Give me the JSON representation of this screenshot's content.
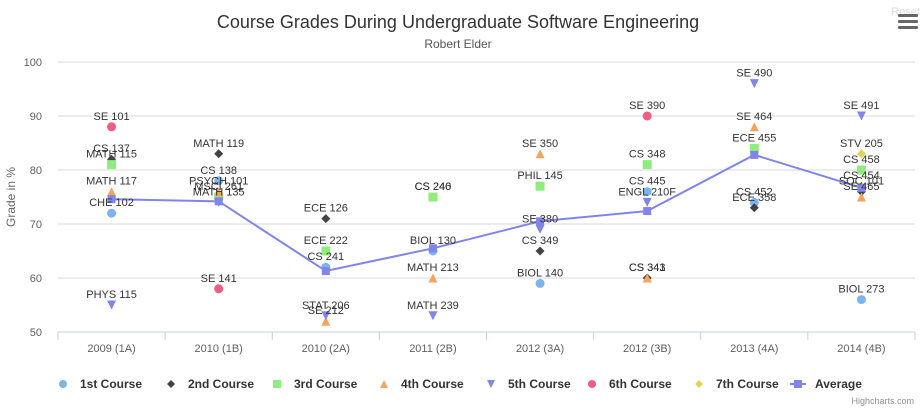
{
  "header": {
    "reset_label": "Reset"
  },
  "credits": "Highcharts.com",
  "icons": {
    "menu": "hamburger-menu-icon"
  },
  "colors": {
    "1st Course": "#7cb5ec",
    "2nd Course": "#434348",
    "3rd Course": "#90ed7d",
    "4th Course": "#f7a35c",
    "5th Course": "#8085e9",
    "6th Course": "#f15c80",
    "7th Course": "#e4d354",
    "Average": "#8085e9"
  },
  "chart_data": {
    "type": "scatter",
    "title": "Course Grades During Undergraduate Software Engineering",
    "subtitle": "Robert Elder",
    "ylabel": "Grade in %",
    "xlabel": "",
    "ylim": [
      50,
      100
    ],
    "yticks": [
      50,
      60,
      70,
      80,
      90,
      100
    ],
    "categories": [
      "2009 (1A)",
      "2010 (1B)",
      "2010 (2A)",
      "2011 (2B)",
      "2012 (3A)",
      "2012 (3B)",
      "2013 (4A)",
      "2014 (4B)"
    ],
    "grid": true,
    "legend_position": "bottom",
    "series": [
      {
        "name": "1st Course",
        "marker": "circle",
        "points": [
          {
            "x": 0,
            "y": 72,
            "label": "CHE 102"
          },
          {
            "x": 1,
            "y": 78,
            "label": "CS 138"
          },
          {
            "x": 2,
            "y": 62,
            "label": "CS 241"
          },
          {
            "x": 3,
            "y": 65,
            "label": "BIOL 130"
          },
          {
            "x": 4,
            "y": 59,
            "label": "BIOL 140"
          },
          {
            "x": 5,
            "y": 76,
            "label": "CS 445"
          },
          {
            "x": 6,
            "y": 74,
            "label": "CS 452"
          },
          {
            "x": 7,
            "y": 56,
            "label": "BIOL 273"
          }
        ]
      },
      {
        "name": "2nd Course",
        "marker": "diamond",
        "points": [
          {
            "x": 0,
            "y": 82,
            "label": "CS 137"
          },
          {
            "x": 1,
            "y": 83,
            "label": "MATH 119"
          },
          {
            "x": 2,
            "y": 71,
            "label": "ECE 126"
          },
          {
            "x": 3,
            "y": 75,
            "label": "CS 246"
          },
          {
            "x": 4,
            "y": 65,
            "label": "CS 349"
          },
          {
            "x": 5,
            "y": 60,
            "label": "CS 341"
          },
          {
            "x": 6,
            "y": 73,
            "label": "ECE 358"
          },
          {
            "x": 7,
            "y": 76,
            "label": "SOC 101"
          }
        ]
      },
      {
        "name": "3rd Course",
        "marker": "square",
        "points": [
          {
            "x": 0,
            "y": 81,
            "label": "MATH 115"
          },
          {
            "x": 1,
            "y": 75,
            "label": "MSCI 261"
          },
          {
            "x": 2,
            "y": 65,
            "label": "ECE 222"
          },
          {
            "x": 3,
            "y": 75,
            "label": "CS 240"
          },
          {
            "x": 4,
            "y": 77,
            "label": "PHIL 145"
          },
          {
            "x": 5,
            "y": 81,
            "label": "CS 348"
          },
          {
            "x": 6,
            "y": 84,
            "label": "ECE 455"
          },
          {
            "x": 7,
            "y": 80,
            "label": "CS 458"
          }
        ]
      },
      {
        "name": "4th Course",
        "marker": "triangle",
        "points": [
          {
            "x": 0,
            "y": 76,
            "label": "MATH 117"
          },
          {
            "x": 1,
            "y": 76,
            "label": "PSYCH 101"
          },
          {
            "x": 2,
            "y": 52,
            "label": "SE 212"
          },
          {
            "x": 3,
            "y": 60,
            "label": "MATH 213"
          },
          {
            "x": 4,
            "y": 83,
            "label": "SE 350"
          },
          {
            "x": 5,
            "y": 60,
            "label": "CS 343"
          },
          {
            "x": 6,
            "y": 88,
            "label": "SE 464"
          },
          {
            "x": 7,
            "y": 75,
            "label": "SE 465"
          }
        ]
      },
      {
        "name": "5th Course",
        "marker": "triangle-down",
        "points": [
          {
            "x": 0,
            "y": 55,
            "label": "PHYS 115"
          },
          {
            "x": 1,
            "y": 74,
            "label": "MATH 135"
          },
          {
            "x": 2,
            "y": 53,
            "label": "STAT 206"
          },
          {
            "x": 3,
            "y": 53,
            "label": "MATH 239"
          },
          {
            "x": 4,
            "y": 69,
            "label": "SE 380"
          },
          {
            "x": 5,
            "y": 74,
            "label": "ENGL 210F"
          },
          {
            "x": 6,
            "y": 96,
            "label": "SE 490"
          },
          {
            "x": 7,
            "y": 90,
            "label": "SE 491"
          }
        ]
      },
      {
        "name": "6th Course",
        "marker": "circle",
        "points": [
          {
            "x": 0,
            "y": 88,
            "label": "SE 101"
          },
          {
            "x": 1,
            "y": 58,
            "label": "SE 141"
          },
          {
            "x": 5,
            "y": 90,
            "label": "SE 390"
          }
        ]
      },
      {
        "name": "7th Course",
        "marker": "diamond",
        "points": [
          {
            "x": 7,
            "y": 83,
            "label": "STV 205"
          },
          {
            "x": 7,
            "y": 77,
            "label": "CS 454"
          }
        ]
      },
      {
        "name": "Average",
        "marker": "square",
        "line": true,
        "values": [
          74.6,
          74.2,
          61.3,
          65.5,
          70.5,
          72.4,
          82.8,
          76.7
        ]
      }
    ]
  }
}
